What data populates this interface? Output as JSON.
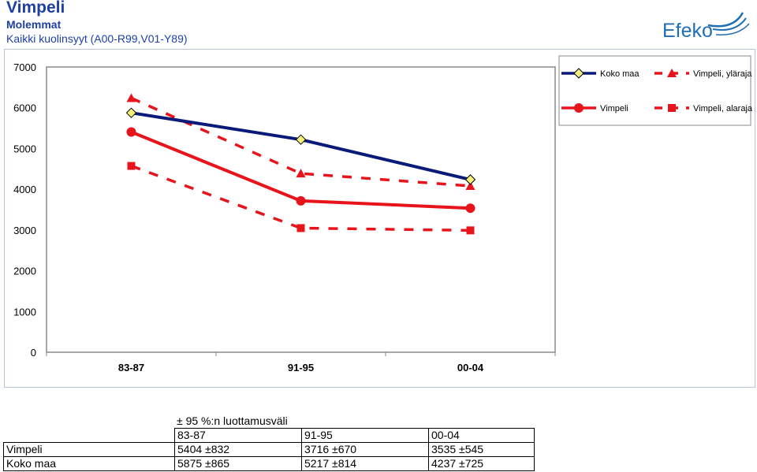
{
  "header": {
    "title": "Vimpeli",
    "subtitle": "Molemmat",
    "cause": "Kaikki kuolinsyyt (A00-R99,V01-Y89)",
    "logo_text": "Efeko"
  },
  "colors": {
    "koko_maa": "#0a1a78",
    "vimpeli": "#e8141b",
    "marker_yellow": "#f5f07a",
    "plot_area": "#ffffff",
    "title_blue": "#1d3fa6"
  },
  "chart_data": {
    "type": "line",
    "categories": [
      "83-87",
      "91-95",
      "00-04"
    ],
    "ylim": [
      0,
      7000
    ],
    "yticks": [
      "0",
      "1000",
      "2000",
      "3000",
      "4000",
      "5000",
      "6000",
      "7000"
    ],
    "grid": false,
    "legend_position": "top-right",
    "series": [
      {
        "name": "Koko maa",
        "values": [
          5875,
          5217,
          4237
        ],
        "color": "#0a1a78",
        "marker": "diamond",
        "style": "solid"
      },
      {
        "name": "Vimpeli, yläraja",
        "values": [
          6236,
          4386,
          4080
        ],
        "color": "#e8141b",
        "marker": "triangle",
        "style": "dashed"
      },
      {
        "name": "Vimpeli",
        "values": [
          5404,
          3716,
          3535
        ],
        "color": "#e8141b",
        "marker": "circle",
        "style": "solid"
      },
      {
        "name": "Vimpeli, alaraja",
        "values": [
          4572,
          3046,
          2990
        ],
        "color": "#e8141b",
        "marker": "square",
        "style": "dashed"
      }
    ]
  },
  "ci_table": {
    "caption": "± 95 %:n luottamusväli",
    "columns": [
      "83-87",
      "91-95",
      "00-04"
    ],
    "rows": [
      {
        "label": "Vimpeli",
        "cells": [
          "5404 ±832",
          "3716 ±670",
          "3535 ±545"
        ]
      },
      {
        "label": "Koko maa",
        "cells": [
          "5875 ±865",
          "5217 ±814",
          "4237 ±725"
        ]
      }
    ]
  }
}
